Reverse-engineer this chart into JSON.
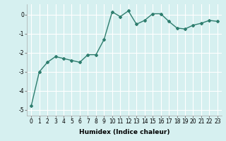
{
  "x": [
    0,
    1,
    2,
    3,
    4,
    5,
    6,
    7,
    8,
    9,
    10,
    11,
    12,
    13,
    14,
    15,
    16,
    17,
    18,
    19,
    20,
    21,
    22,
    23
  ],
  "y": [
    -4.8,
    -3.0,
    -2.5,
    -2.2,
    -2.3,
    -2.4,
    -2.5,
    -2.1,
    -2.1,
    -1.3,
    0.15,
    -0.1,
    0.2,
    -0.5,
    -0.3,
    0.05,
    0.05,
    -0.35,
    -0.7,
    -0.75,
    -0.55,
    -0.45,
    -0.3,
    -0.35
  ],
  "line_color": "#2e7d6e",
  "marker": "D",
  "marker_size": 2,
  "bg_color": "#d6f0f0",
  "grid_color": "#ffffff",
  "xlabel": "Humidex (Indice chaleur)",
  "xlim": [
    -0.5,
    23.5
  ],
  "ylim": [
    -5.3,
    0.55
  ],
  "yticks": [
    0,
    -1,
    -2,
    -3,
    -4,
    -5
  ],
  "xticks": [
    0,
    1,
    2,
    3,
    4,
    5,
    6,
    7,
    8,
    9,
    10,
    11,
    12,
    13,
    14,
    15,
    16,
    17,
    18,
    19,
    20,
    21,
    22,
    23
  ],
  "xlabel_fontsize": 6.5,
  "tick_fontsize": 5.5,
  "line_width": 1.0
}
